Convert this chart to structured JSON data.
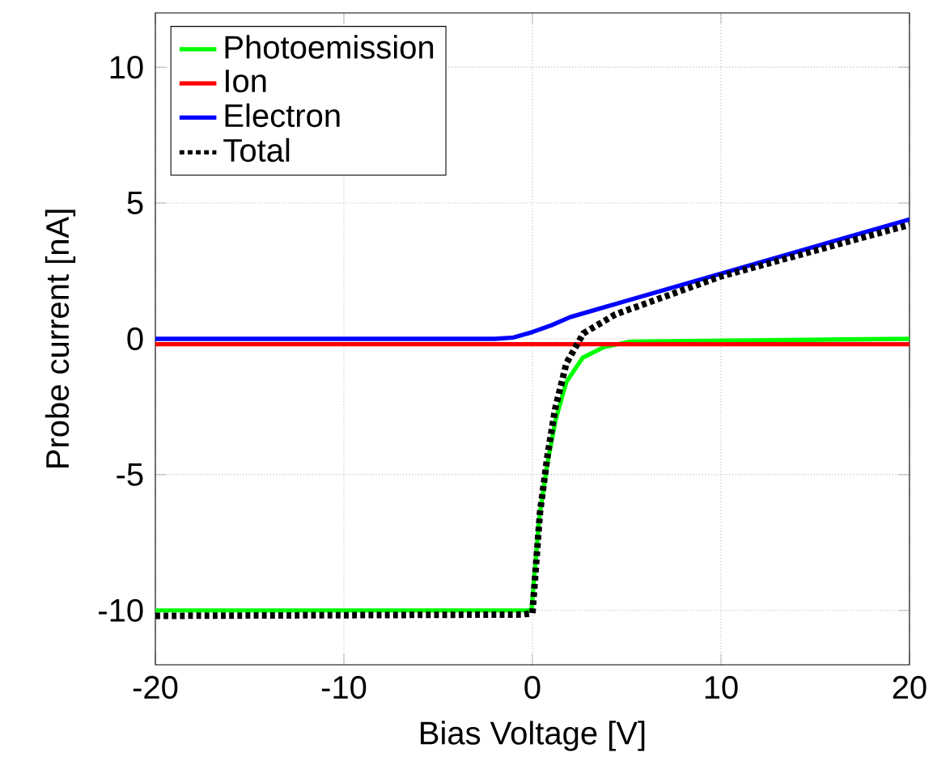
{
  "chart_data": {
    "type": "line",
    "xlabel": "Bias Voltage [V]",
    "ylabel": "Probe current [nA]",
    "xlim": [
      -20,
      20
    ],
    "ylim": [
      -12,
      12
    ],
    "xticks": [
      -20,
      -10,
      0,
      10,
      20
    ],
    "yticks": [
      -10,
      -5,
      0,
      5,
      10
    ],
    "grid": true,
    "legend": "top left",
    "series": [
      {
        "name": "Photoemission",
        "color": "#00ff00",
        "line_style": "solid",
        "x": [
          -20,
          -0.05,
          0.37,
          0.8,
          1.23,
          1.8,
          2.66,
          3.8,
          5.2,
          20
        ],
        "values": [
          -10,
          -10,
          -6.55,
          -4.56,
          -2.98,
          -1.59,
          -0.7,
          -0.3,
          -0.1,
          0
        ]
      },
      {
        "name": "Ion",
        "color": "#ff0000",
        "line_style": "solid",
        "x": [
          -20,
          20
        ],
        "values": [
          -0.2,
          -0.2
        ]
      },
      {
        "name": "Electron",
        "color": "#0000ff",
        "line_style": "solid",
        "x": [
          -20,
          -2,
          -1,
          0,
          1,
          2,
          4,
          20
        ],
        "values": [
          0,
          0,
          0.05,
          0.25,
          0.5,
          0.8,
          1.2,
          4.4
        ]
      },
      {
        "name": "Total",
        "color": "#000000",
        "line_style": "dotted",
        "x": [
          -20,
          -0.5,
          0,
          0.4,
          0.8,
          1.2,
          1.8,
          2.7,
          4.4,
          10,
          20
        ],
        "values": [
          -10.2,
          -10.15,
          -10.1,
          -6.4,
          -4.3,
          -2.6,
          -0.9,
          0.2,
          0.9,
          2.3,
          4.2
        ]
      }
    ]
  }
}
